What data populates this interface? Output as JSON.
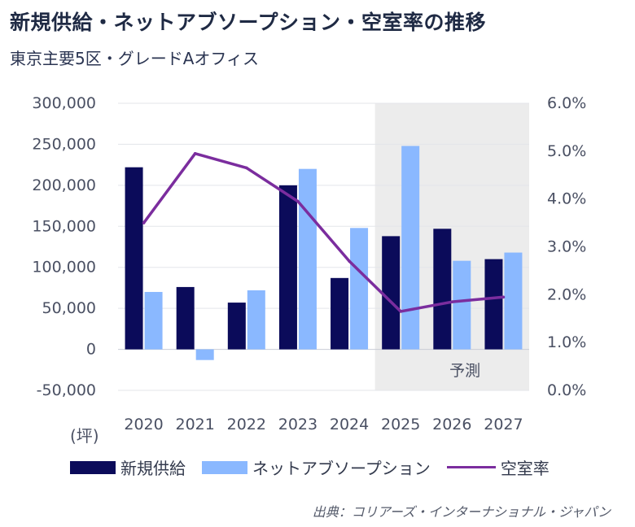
{
  "title": "新規供給・ネットアブソープション・空室率の推移",
  "subtitle": "東京主要5区・グレードAオフィス",
  "unit_label": "(坪)",
  "source": "出典：コリアーズ・インターナショナル・ジャパン",
  "forecast_label": "予測",
  "colors": {
    "new_supply": "#0b0b5a",
    "net_absorption": "#8ab8ff",
    "vacancy": "#7b2d9e",
    "forecast_bg": "#ececec"
  },
  "legend": [
    {
      "label": "新規供給",
      "kind": "bar",
      "color": "#0b0b5a"
    },
    {
      "label": "ネットアブソープション",
      "kind": "bar",
      "color": "#8ab8ff"
    },
    {
      "label": "空室率",
      "kind": "line",
      "color": "#7b2d9e"
    }
  ],
  "chart_data": {
    "type": "bar",
    "categories": [
      "2020",
      "2021",
      "2022",
      "2023",
      "2024",
      "2025",
      "2026",
      "2027"
    ],
    "series": [
      {
        "name": "新規供給",
        "type": "bar",
        "axis": "left",
        "values": [
          222000,
          76000,
          57000,
          200000,
          87000,
          138000,
          147000,
          110000
        ]
      },
      {
        "name": "ネットアブソープション",
        "type": "bar",
        "axis": "left",
        "values": [
          70000,
          -13000,
          72000,
          220000,
          148000,
          248000,
          108000,
          118000
        ]
      },
      {
        "name": "空室率",
        "type": "line",
        "axis": "right",
        "values": [
          3.5,
          4.95,
          4.65,
          3.95,
          2.7,
          1.65,
          1.85,
          1.95
        ]
      }
    ],
    "left_axis": {
      "ylim": [
        -50000,
        300000
      ],
      "ticks": [
        300000,
        250000,
        200000,
        150000,
        100000,
        50000,
        0,
        -50000
      ],
      "tick_labels": [
        "300,000",
        "250,000",
        "200,000",
        "150,000",
        "100,000",
        "50,000",
        "0",
        "-50,000"
      ]
    },
    "right_axis": {
      "ylim": [
        0,
        6
      ],
      "ticks": [
        6,
        5,
        4,
        3,
        2,
        1,
        0
      ],
      "tick_labels": [
        "6.0%",
        "5.0%",
        "4.0%",
        "3.0%",
        "2.0%",
        "1.0%",
        "0.0%"
      ]
    },
    "forecast_from": "2025",
    "grid": "horizontal",
    "legend_position": "bottom"
  }
}
